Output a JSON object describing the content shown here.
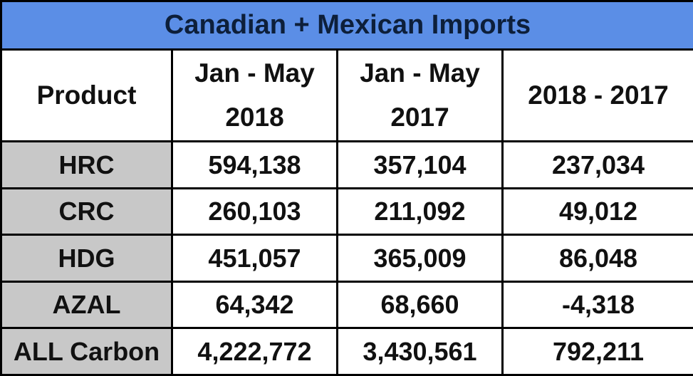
{
  "chart_data": {
    "type": "table",
    "title": "Canadian + Mexican Imports",
    "columns": [
      {
        "line1": "Product",
        "line2": ""
      },
      {
        "line1": "Jan - May",
        "line2": "2018"
      },
      {
        "line1": "Jan - May",
        "line2": "2017"
      },
      {
        "line1": "2018 - 2017",
        "line2": ""
      }
    ],
    "rows": [
      {
        "product": "HRC",
        "v2018": "594,138",
        "v2017": "357,104",
        "diff": "237,034"
      },
      {
        "product": "CRC",
        "v2018": "260,103",
        "v2017": "211,092",
        "diff": "49,012"
      },
      {
        "product": "HDG",
        "v2018": "451,057",
        "v2017": "365,009",
        "diff": "86,048"
      },
      {
        "product": "AZAL",
        "v2018": "64,342",
        "v2017": "68,660",
        "diff": "-4,318"
      },
      {
        "product": "ALL Carbon",
        "v2018": "4,222,772",
        "v2017": "3,430,561",
        "diff": "792,211"
      }
    ]
  },
  "colors": {
    "title_bg": "#5b8ee6",
    "product_bg": "#c8c8c8",
    "border": "#000000"
  }
}
